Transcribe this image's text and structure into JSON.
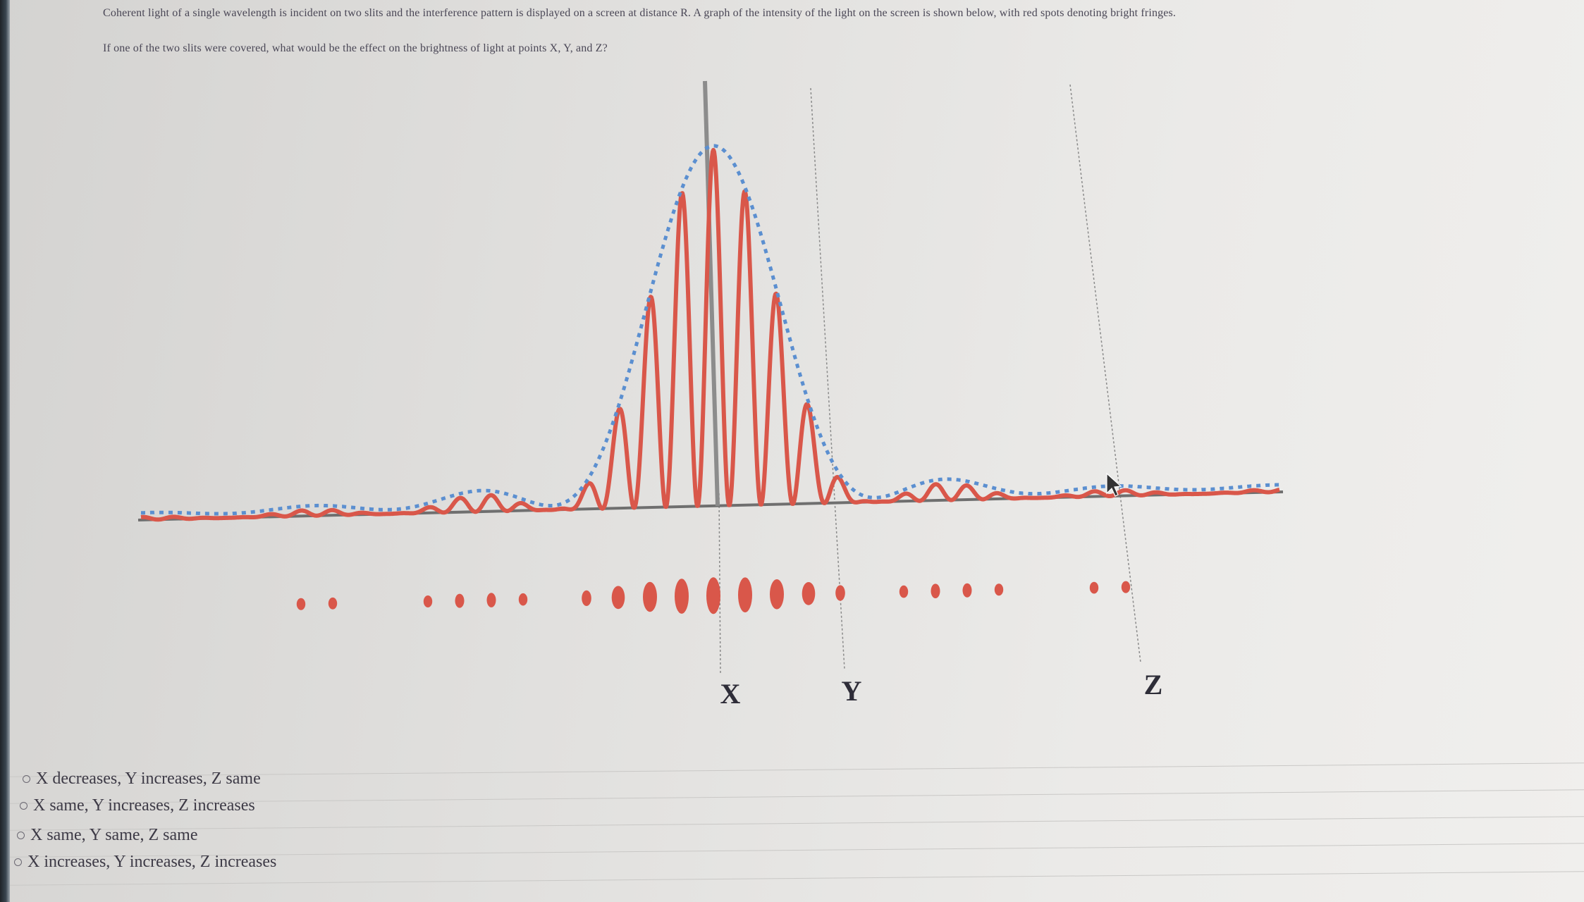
{
  "question": {
    "line1": "Coherent light of a single wavelength is incident on two slits and the interference pattern is displayed on a screen at distance R. A graph of the intensity of the light on the screen is shown below, with red spots denoting bright fringes.",
    "line2": "If one of the two slits were covered, what would be the effect on the brightness of light at points X, Y, and Z?"
  },
  "figure": {
    "labels": {
      "x": "X",
      "y": "Y",
      "z": "Z"
    },
    "colors": {
      "fringe": "#d9574a",
      "envelope": "#5b8fd0",
      "axis": "#6f6f6f"
    }
  },
  "options": [
    {
      "label": "X decreases, Y increases, Z same"
    },
    {
      "label": "X same, Y increases, Z increases"
    },
    {
      "label": "X same, Y same, Z same"
    },
    {
      "label": "X increases, Y increases, Z increases"
    }
  ]
}
